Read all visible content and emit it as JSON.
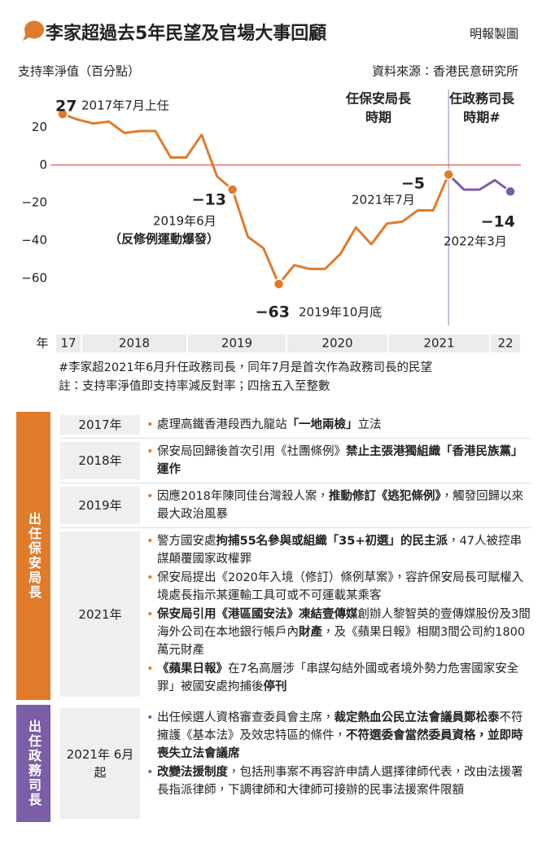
{
  "header": {
    "title": "李家超過去5年民望及官場大事回顧",
    "credit": "明報製圖"
  },
  "chart_data": {
    "type": "line",
    "y_label": "支持率淨值（百分點）",
    "source": "資料來源：香港民意研究所",
    "categories": [
      null,
      null,
      null,
      null,
      null,
      null,
      null,
      null,
      null,
      null,
      null,
      null,
      null,
      null,
      null,
      null,
      null,
      null,
      null,
      null,
      null,
      null,
      null,
      null,
      null,
      null,
      null,
      null,
      null,
      null
    ],
    "series": [
      {
        "color": "#e07b2a",
        "values": [
          27,
          24,
          22,
          23,
          17,
          18,
          18,
          4,
          4,
          16,
          -6,
          -13,
          -38,
          -44,
          -63,
          -53,
          -55,
          -55,
          -47,
          -33,
          -42,
          -31,
          -30,
          -24,
          -24,
          -5,
          null,
          null,
          null,
          null
        ],
        "value_labels": [
          "27",
          null,
          null,
          null,
          null,
          null,
          null,
          null,
          null,
          null,
          null,
          "−13",
          null,
          null,
          "−63",
          null,
          null,
          null,
          null,
          null,
          null,
          null,
          null,
          null,
          null,
          "−5",
          null,
          null,
          null,
          null
        ]
      },
      {
        "color": "#7b5ea7",
        "values": [
          null,
          null,
          null,
          null,
          null,
          null,
          null,
          null,
          null,
          null,
          null,
          null,
          null,
          null,
          null,
          null,
          null,
          null,
          null,
          null,
          null,
          null,
          null,
          null,
          null,
          -5,
          -13,
          -13,
          -8,
          -14
        ],
        "value_labels": [
          null,
          null,
          null,
          null,
          null,
          null,
          null,
          null,
          null,
          null,
          null,
          null,
          null,
          null,
          null,
          null,
          null,
          null,
          null,
          null,
          null,
          null,
          null,
          null,
          null,
          null,
          null,
          null,
          null,
          "−14"
        ]
      }
    ],
    "ylim": [
      -85,
      40
    ],
    "yticks": [
      20,
      0,
      {
        "value": -20,
        "label": "−20"
      },
      {
        "value": -40,
        "label": "−40"
      },
      {
        "value": -60,
        "label": "−60"
      }
    ],
    "zero_line_color": "#d9302c",
    "annotations": [
      "2017年7月上任",
      "2019年6月",
      "（反修例運動爆發）",
      "2019年10月底",
      "2021年7月",
      "2022年3月"
    ],
    "period_labels": [
      [
        "任保安局長",
        "時期"
      ],
      [
        "任政務司長",
        "時期#"
      ]
    ],
    "x_axis_unit": "年",
    "year_labels": [
      "17",
      "2018",
      "2019",
      "2020",
      "2021",
      "22"
    ],
    "notes": [
      "#李家超2021年6月升任政務司長，同年7月是首次作為政務司長的民望",
      "註：支持率淨值即支持率減反對率；四捨五入至整數"
    ]
  },
  "timeline": [
    {
      "group": "出任保安局長",
      "color": "#e07b2a",
      "rows": [
        {
          "year": "2017年",
          "bullets": [
            [
              "處理高鐵香港段西九龍站",
              {
                "bold": "「一地兩檢」"
              },
              "立法"
            ]
          ]
        },
        {
          "year": "2018年",
          "bullets": [
            [
              "保安局回歸後首次引用《社團條例》",
              {
                "bold": "禁止主張港獨組織「香港民族黨」運作"
              }
            ]
          ]
        },
        {
          "year": "2019年",
          "bullets": [
            [
              "因應2018年陳同佳台灣殺人案，",
              {
                "bold": "推動修訂《逃犯條例》"
              },
              "，觸發回歸以來最大政治風暴"
            ]
          ]
        },
        {
          "year": "2021年",
          "bullets": [
            [
              "警方國安處",
              {
                "bold": "拘捕55名參與或組織「35+初選」的民主派"
              },
              "，47人被控串謀顛覆國家政權罪"
            ],
            [
              "保安局提出《2020年入境（修訂）條例草案》，容許保安局長可賦權入境處長指示某運輸工具可或不可運載某乘客"
            ],
            [
              {
                "bold": "保安局引用《港區國安法》凍結壹傳媒"
              },
              "創辦人黎智英的壹傳媒股份及3間海外公司在本地銀行帳戶內",
              {
                "bold": "財產"
              },
              "，及《蘋果日報》相關3間公司約1800萬元財產"
            ],
            [
              {
                "bold": "《蘋果日報》"
              },
              "在7名高層涉「串謀勾結外國或者境外勢力危害國家安全罪」被國安處拘捕後",
              {
                "bold": "停刊"
              }
            ]
          ]
        }
      ]
    },
    {
      "group": "出任政務司長",
      "color": "#7b5ea7",
      "rows": [
        {
          "year": "2021年 6月起",
          "bullets": [
            [
              "出任候選人資格審查委員會主席，",
              {
                "bold": "裁定熱血公民立法會議員鄭松泰"
              },
              "不符擁護《基本法》及效忠特區的條件，",
              {
                "bold": "不符選委會當然委員資格，並即時喪失立法會議席"
              }
            ],
            [
              {
                "bold": "改變法援制度"
              },
              "，包括刑事案不再容許申請人選擇律師代表，改由法援署長指派律師，下調律師和大律師可接辦的民事法援案件限額"
            ]
          ]
        }
      ]
    }
  ]
}
